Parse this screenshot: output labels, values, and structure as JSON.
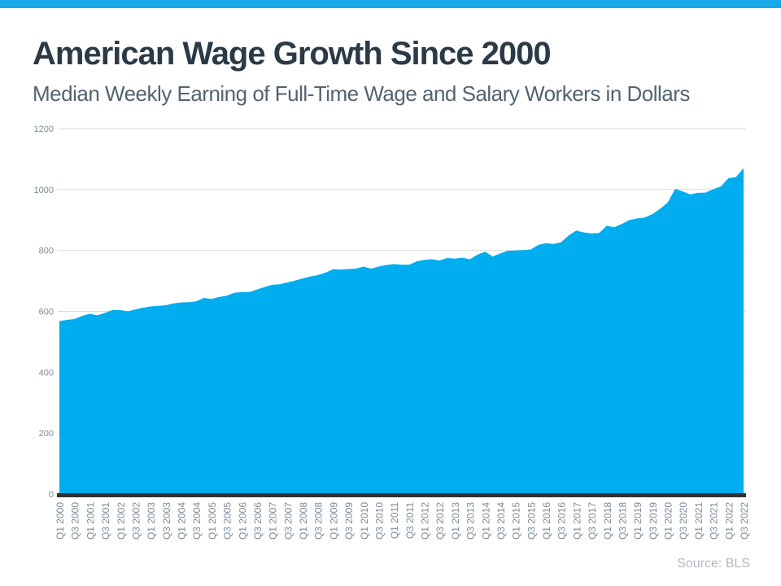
{
  "colors": {
    "top_bar": "#19A9EA",
    "area_fill": "#00ADEF",
    "gridline": "#D9D9D9",
    "axis_line": "#303030",
    "tick_label": "#7D8A96",
    "title": "#2B3A46",
    "subtitle": "#52646F",
    "source": "#B0B9C0"
  },
  "chart_data": {
    "type": "area",
    "title": "American Wage Growth Since 2000",
    "subtitle": "Median Weekly Earning of Full-Time Wage and Salary Workers in Dollars",
    "source": "Source: BLS",
    "xlabel": "",
    "ylabel": "",
    "ylim": [
      0,
      1200
    ],
    "y_ticks": [
      0,
      200,
      400,
      600,
      800,
      1000,
      1200
    ],
    "x_tick_every": 2,
    "grid": true,
    "legend": false,
    "categories": [
      "Q1 2000",
      "Q2 2000",
      "Q3 2000",
      "Q4 2000",
      "Q1 2001",
      "Q2 2001",
      "Q3 2001",
      "Q4 2001",
      "Q1 2002",
      "Q2 2002",
      "Q3 2002",
      "Q4 2002",
      "Q1 2003",
      "Q2 2003",
      "Q3 2003",
      "Q4 2003",
      "Q1 2004",
      "Q2 2004",
      "Q3 2004",
      "Q4 2004",
      "Q1 2005",
      "Q2 2005",
      "Q3 2005",
      "Q4 2005",
      "Q1 2006",
      "Q2 2006",
      "Q3 2006",
      "Q4 2006",
      "Q1 2007",
      "Q2 2007",
      "Q3 2007",
      "Q4 2007",
      "Q1 2008",
      "Q2 2008",
      "Q3 2008",
      "Q4 2008",
      "Q1 2009",
      "Q2 2009",
      "Q3 2009",
      "Q4 2009",
      "Q1 2010",
      "Q2 2010",
      "Q3 2010",
      "Q4 2010",
      "Q1 2011",
      "Q2 2011",
      "Q3 2011",
      "Q4 2011",
      "Q1 2012",
      "Q2 2012",
      "Q3 2012",
      "Q4 2012",
      "Q1 2013",
      "Q2 2013",
      "Q3 2013",
      "Q4 2013",
      "Q1 2014",
      "Q2 2014",
      "Q3 2014",
      "Q4 2014",
      "Q1 2015",
      "Q2 2015",
      "Q3 2015",
      "Q4 2015",
      "Q1 2016",
      "Q2 2016",
      "Q3 2016",
      "Q4 2016",
      "Q1 2017",
      "Q2 2017",
      "Q3 2017",
      "Q4 2017",
      "Q1 2018",
      "Q2 2018",
      "Q3 2018",
      "Q4 2018",
      "Q1 2019",
      "Q2 2019",
      "Q3 2019",
      "Q4 2019",
      "Q1 2020",
      "Q2 2020",
      "Q3 2020",
      "Q4 2020",
      "Q1 2021",
      "Q2 2021",
      "Q3 2021",
      "Q4 2021",
      "Q1 2022",
      "Q2 2022",
      "Q3 2022"
    ],
    "values": [
      568,
      572,
      575,
      585,
      592,
      587,
      595,
      604,
      604,
      600,
      606,
      612,
      616,
      618,
      620,
      626,
      629,
      630,
      633,
      644,
      641,
      647,
      651,
      661,
      663,
      663,
      672,
      680,
      687,
      689,
      695,
      701,
      708,
      714,
      719,
      727,
      738,
      737,
      739,
      740,
      747,
      740,
      747,
      752,
      755,
      753,
      753,
      764,
      769,
      771,
      767,
      775,
      773,
      776,
      771,
      786,
      796,
      780,
      790,
      799,
      800,
      801,
      803,
      818,
      824,
      821,
      827,
      849,
      865,
      859,
      856,
      857,
      881,
      876,
      887,
      900,
      905,
      908,
      919,
      936,
      957,
      1002,
      994,
      984,
      989,
      990,
      1001,
      1010,
      1037,
      1041,
      1070
    ]
  }
}
